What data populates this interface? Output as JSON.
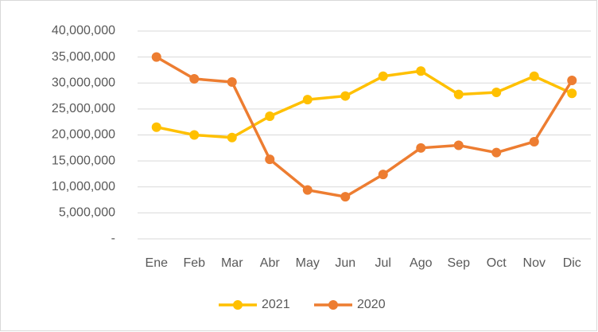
{
  "chart_data": {
    "type": "line",
    "categories": [
      "Ene",
      "Feb",
      "Mar",
      "Abr",
      "May",
      "Jun",
      "Jul",
      "Ago",
      "Sep",
      "Oct",
      "Nov",
      "Dic"
    ],
    "series": [
      {
        "name": "2021",
        "color": "#FFC000",
        "values": [
          21500000,
          20000000,
          19500000,
          23600000,
          26800000,
          27500000,
          31300000,
          32300000,
          27800000,
          28200000,
          31300000,
          28000000
        ]
      },
      {
        "name": "2020",
        "color": "#ED7D31",
        "values": [
          35000000,
          30800000,
          30200000,
          15300000,
          9400000,
          8100000,
          12400000,
          17500000,
          18000000,
          16600000,
          18700000,
          30500000
        ]
      }
    ],
    "ylim": [
      0,
      40000000
    ],
    "yticks": [
      {
        "value": 0,
        "label": "-"
      },
      {
        "value": 5000000,
        "label": "5,000,000"
      },
      {
        "value": 10000000,
        "label": "10,000,000"
      },
      {
        "value": 15000000,
        "label": "15,000,000"
      },
      {
        "value": 20000000,
        "label": "20,000,000"
      },
      {
        "value": 25000000,
        "label": "25,000,000"
      },
      {
        "value": 30000000,
        "label": "30,000,000"
      },
      {
        "value": 35000000,
        "label": "35,000,000"
      },
      {
        "value": 40000000,
        "label": "40,000,000"
      }
    ],
    "grid": true,
    "legend": "bottom"
  }
}
